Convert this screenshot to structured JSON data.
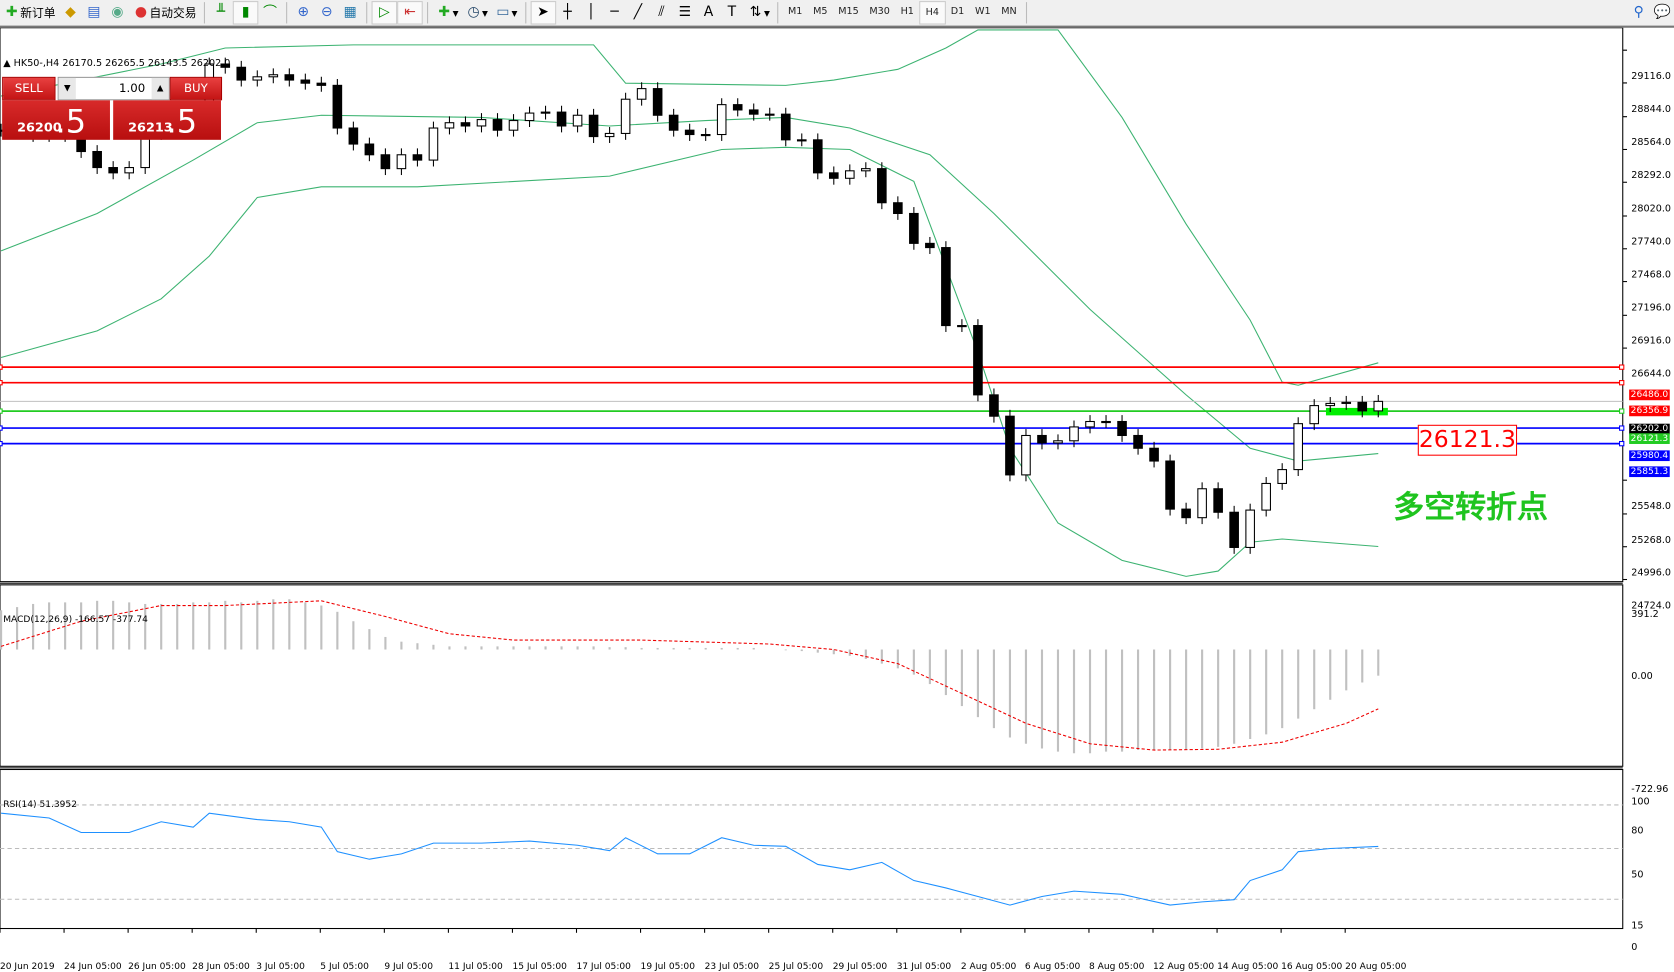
{
  "toolbar": {
    "new_order": "新订单",
    "auto_trading": "自动交易",
    "icons": [
      "new-order-icon",
      "market-watch-icon",
      "navigator-icon",
      "signals-icon",
      "auto-trading-icon",
      "bar-chart-icon",
      "candlestick-icon",
      "line-chart-icon",
      "zoom-in-icon",
      "zoom-out-icon",
      "tile-windows-icon",
      "auto-scroll-icon",
      "chart-shift-icon",
      "indicators-icon",
      "periods-icon",
      "templates-icon",
      "cursor-icon",
      "crosshair-icon",
      "vertical-line-icon",
      "horizontal-line-icon",
      "trendline-icon",
      "equidistant-channel-icon",
      "fibonacci-icon",
      "text-icon",
      "text-label-icon",
      "arrows-icon"
    ],
    "timeframes": [
      "M1",
      "M5",
      "M15",
      "M30",
      "H1",
      "H4",
      "D1",
      "W1",
      "MN"
    ],
    "active_timeframe": "H4"
  },
  "chart": {
    "info": "HK50-,H4  26170.5 26265.5 26143.5 26202.0",
    "trade": {
      "sell": "SELL",
      "buy": "BUY",
      "lots": "1.00",
      "sell_small": "26200",
      "sell_big": ".5",
      "buy_small": "26213",
      "buy_big": ".5"
    },
    "callout": "26121.3",
    "note": "多空转折点",
    "colors": {
      "band": "#3cb371",
      "bull": "#ffffff",
      "bear": "#000000",
      "resistance": "#ff0000",
      "support": "#0000ff",
      "pivot": "#22cc22",
      "bid": "#c0c0c0"
    }
  },
  "chart_data": [
    {
      "type": "candlestick",
      "name": "HK50-,H4",
      "yrange": [
        24724.0,
        29116.0
      ],
      "yticks": [
        "29116.0",
        "28844.0",
        "28564.0",
        "28292.0",
        "28020.0",
        "27740.0",
        "27468.0",
        "27196.0",
        "26916.0",
        "26644.0",
        "25548.0",
        "25268.0",
        "24996.0",
        "24724.0"
      ],
      "close": [
        28452,
        28452,
        28408,
        28408,
        28434,
        28275,
        28142,
        28098,
        28142,
        28425,
        28514,
        28452,
        28452,
        29001,
        28974,
        28868,
        28895,
        28912,
        28868,
        28842,
        28824,
        28470,
        28337,
        28248,
        28133,
        28248,
        28204,
        28470,
        28514,
        28487,
        28540,
        28452,
        28532,
        28594,
        28602,
        28487,
        28576,
        28399,
        28425,
        28709,
        28797,
        28576,
        28452,
        28416,
        28416,
        28664,
        28620,
        28585,
        28585,
        28372,
        28372,
        28098,
        28053,
        28115,
        28133,
        27850,
        27761,
        27513,
        27478,
        26831,
        26831,
        26256,
        26079,
        25592,
        25919,
        25857,
        25875,
        25990,
        26035,
        26035,
        25919,
        25813,
        25707,
        25308,
        25237,
        25477,
        25282,
        24990,
        25300,
        25521,
        25636,
        26017,
        26167,
        26185,
        26194,
        26123,
        26202
      ],
      "bollinger": {
        "upper": [
          [
            0,
            28735
          ],
          [
            10,
            29001
          ],
          [
            14,
            29134
          ],
          [
            22,
            29160
          ],
          [
            37,
            29160
          ],
          [
            39,
            28842
          ],
          [
            49,
            28824
          ],
          [
            52,
            28868
          ],
          [
            56,
            28957
          ],
          [
            59,
            29134
          ],
          [
            61,
            29284
          ],
          [
            66,
            29284
          ],
          [
            70,
            28558
          ],
          [
            74,
            27673
          ],
          [
            78,
            26876
          ],
          [
            80,
            26362
          ],
          [
            81,
            26336
          ],
          [
            86,
            26522
          ]
        ],
        "middle": [
          [
            0,
            27451
          ],
          [
            6,
            27761
          ],
          [
            12,
            28204
          ],
          [
            16,
            28514
          ],
          [
            20,
            28576
          ],
          [
            30,
            28558
          ],
          [
            38,
            28487
          ],
          [
            44,
            28532
          ],
          [
            49,
            28558
          ],
          [
            53,
            28470
          ],
          [
            58,
            28248
          ],
          [
            62,
            27761
          ],
          [
            68,
            26965
          ],
          [
            74,
            26256
          ],
          [
            78,
            25813
          ],
          [
            81,
            25707
          ],
          [
            86,
            25769
          ]
        ],
        "lower": [
          [
            0,
            26566
          ],
          [
            6,
            26787
          ],
          [
            10,
            27053
          ],
          [
            13,
            27407
          ],
          [
            16,
            27894
          ],
          [
            20,
            27982
          ],
          [
            26,
            27982
          ],
          [
            38,
            28071
          ],
          [
            45,
            28292
          ],
          [
            49,
            28310
          ],
          [
            53,
            28292
          ],
          [
            57,
            28027
          ],
          [
            59,
            27318
          ],
          [
            61,
            26610
          ],
          [
            63,
            25813
          ],
          [
            66,
            25193
          ],
          [
            70,
            24883
          ],
          [
            74,
            24750
          ],
          [
            76,
            24794
          ],
          [
            78,
            25033
          ],
          [
            80,
            25060
          ],
          [
            86,
            24998
          ]
        ]
      },
      "hlines": [
        {
          "price": "26486.0",
          "kind": "resistance",
          "color": "#ff0000"
        },
        {
          "price": "26356.9",
          "kind": "resistance",
          "color": "#ff0000"
        },
        {
          "price": "26202.0",
          "kind": "bid",
          "color": "#000000"
        },
        {
          "price": "26121.3",
          "kind": "pivot",
          "color": "#22cc22"
        },
        {
          "price": "25980.4",
          "kind": "support",
          "color": "#0000ff"
        },
        {
          "price": "25851.3",
          "kind": "support",
          "color": "#0000ff"
        }
      ],
      "pivot_zone": {
        "from_index": 83,
        "to_index": 87,
        "price": 26121.3
      },
      "xticks": [
        "20 Jun 2019",
        "24 Jun 05:00",
        "26 Jun 05:00",
        "28 Jun 05:00",
        "3 Jul 05:00",
        "5 Jul 05:00",
        "9 Jul 05:00",
        "11 Jul 05:00",
        "15 Jul 05:00",
        "17 Jul 05:00",
        "19 Jul 05:00",
        "23 Jul 05:00",
        "25 Jul 05:00",
        "29 Jul 05:00",
        "31 Jul 05:00",
        "2 Aug 05:00",
        "6 Aug 05:00",
        "8 Aug 05:00",
        "12 Aug 05:00",
        "14 Aug 05:00",
        "16 Aug 05:00",
        "20 Aug 05:00"
      ]
    },
    {
      "type": "bar",
      "name": "MACD(12,26,9) -166.57 -377.74",
      "yrange": [
        -722.96,
        391.2
      ],
      "yticks": [
        "391.2",
        "0.00",
        "-722.96"
      ],
      "histogram": [
        250,
        270,
        290,
        300,
        300,
        300,
        310,
        310,
        300,
        290,
        290,
        290,
        300,
        300,
        310,
        300,
        310,
        320,
        320,
        300,
        280,
        240,
        180,
        130,
        80,
        50,
        40,
        30,
        20,
        20,
        20,
        20,
        20,
        20,
        20,
        20,
        20,
        20,
        15,
        15,
        10,
        10,
        10,
        10,
        10,
        10,
        10,
        10,
        0,
        -5,
        -10,
        -20,
        -30,
        -40,
        -60,
        -90,
        -120,
        -160,
        -220,
        -290,
        -360,
        -430,
        -500,
        -560,
        -600,
        -630,
        -650,
        -660,
        -660,
        -650,
        -650,
        -640,
        -640,
        -640,
        -640,
        -630,
        -620,
        -600,
        -570,
        -540,
        -500,
        -440,
        -380,
        -320,
        -260,
        -210,
        -166.57
      ],
      "signal": [
        [
          0,
          20
        ],
        [
          5,
          180
        ],
        [
          10,
          280
        ],
        [
          14,
          280
        ],
        [
          20,
          310
        ],
        [
          24,
          210
        ],
        [
          28,
          100
        ],
        [
          32,
          60
        ],
        [
          40,
          60
        ],
        [
          48,
          35
        ],
        [
          52,
          0
        ],
        [
          56,
          -90
        ],
        [
          60,
          -280
        ],
        [
          64,
          -470
        ],
        [
          68,
          -600
        ],
        [
          72,
          -640
        ],
        [
          76,
          -635
        ],
        [
          80,
          -590
        ],
        [
          84,
          -470
        ],
        [
          86,
          -377.74
        ]
      ]
    },
    {
      "type": "line",
      "name": "RSI(14) 51.3952",
      "yrange": [
        0,
        100
      ],
      "yticks": [
        "100",
        "80",
        "50",
        "15",
        "0"
      ],
      "levels": [
        80,
        50,
        15
      ],
      "values": [
        [
          0,
          74.3
        ],
        [
          3,
          71
        ],
        [
          5,
          61
        ],
        [
          8,
          61
        ],
        [
          10,
          68.4
        ],
        [
          12,
          64.7
        ],
        [
          13,
          74.3
        ],
        [
          16,
          69.9
        ],
        [
          18,
          68.4
        ],
        [
          20,
          64.7
        ],
        [
          21,
          47.8
        ],
        [
          23,
          42.6
        ],
        [
          25,
          46.3
        ],
        [
          27,
          53.7
        ],
        [
          30,
          53.7
        ],
        [
          33,
          55.1
        ],
        [
          36,
          52.2
        ],
        [
          38,
          48.5
        ],
        [
          39,
          57.4
        ],
        [
          41,
          46.3
        ],
        [
          43,
          46.3
        ],
        [
          45,
          57.4
        ],
        [
          47,
          52.2
        ],
        [
          49,
          51.5
        ],
        [
          51,
          39
        ],
        [
          53,
          35.3
        ],
        [
          55,
          40.4
        ],
        [
          57,
          27.9
        ],
        [
          59,
          22.8
        ],
        [
          61,
          16.9
        ],
        [
          63,
          11
        ],
        [
          65,
          16.9
        ],
        [
          67,
          20.6
        ],
        [
          70,
          18.4
        ],
        [
          73,
          11
        ],
        [
          75,
          13.2
        ],
        [
          77,
          14.7
        ],
        [
          78,
          27.9
        ],
        [
          80,
          35.3
        ],
        [
          81,
          47.8
        ],
        [
          83,
          50
        ],
        [
          86,
          51.4
        ]
      ]
    }
  ]
}
